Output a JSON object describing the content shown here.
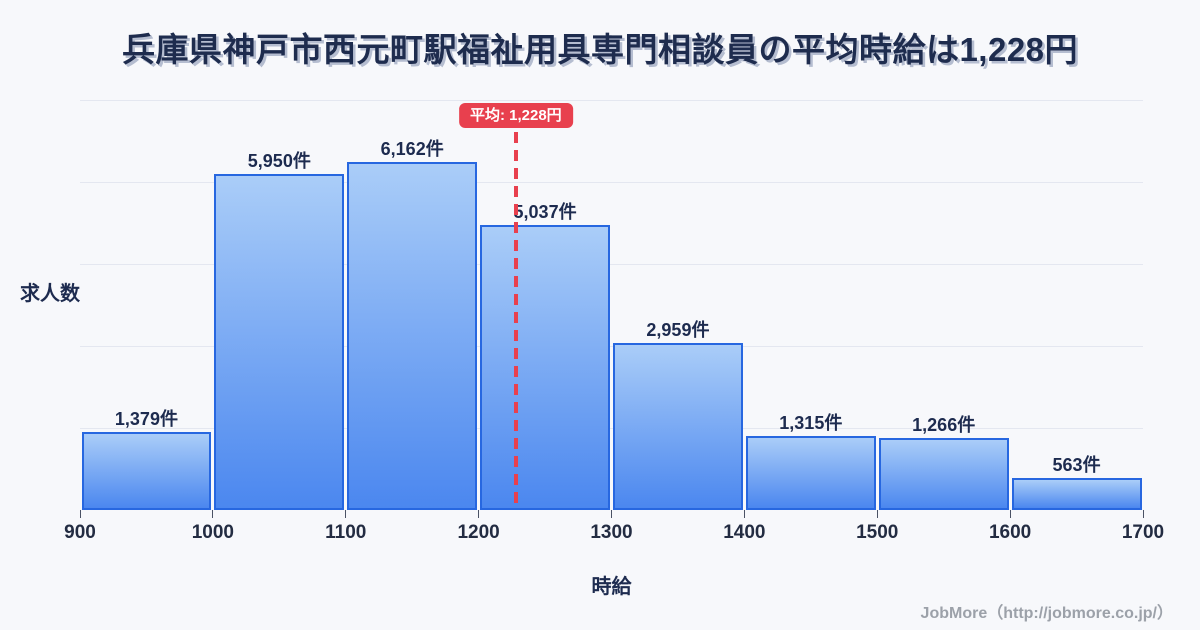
{
  "title": "兵庫県神戸市西元町駅福祉用具専門相談員の平均時給は1,228円",
  "chart_data": {
    "type": "bar",
    "subtype": "histogram",
    "title": "兵庫県神戸市西元町駅福祉用具専門相談員の平均時給は1,228円",
    "xlabel": "時給",
    "ylabel": "求人数",
    "bin_edges": [
      900,
      1000,
      1100,
      1200,
      1300,
      1400,
      1500,
      1600,
      1700
    ],
    "x_tick_labels": [
      "900",
      "1000",
      "1100",
      "1200",
      "1300",
      "1400",
      "1500",
      "1600",
      "1700"
    ],
    "values": [
      1379,
      5950,
      6162,
      5037,
      2959,
      1315,
      1266,
      563
    ],
    "bar_labels": [
      "1,379件",
      "5,950件",
      "6,162件",
      "5,037件",
      "2,959件",
      "1,315件",
      "1,266件",
      "563件"
    ],
    "ylim": [
      0,
      7250
    ],
    "grid": "horizontal",
    "gridline_count": 5,
    "legend": "none",
    "average": {
      "value": 1228,
      "label": "平均: 1,228円"
    }
  },
  "footer": {
    "credit": "JobMore（http://jobmore.co.jp/）"
  },
  "colors": {
    "background": "#f7f8fb",
    "title_text": "#1e2c4e",
    "bar_fill_top": "#aacdf8",
    "bar_fill_bottom": "#4b87ef",
    "bar_border": "#2767e0",
    "grid_line": "#e4e7f0",
    "average_red": "#e8404e",
    "badge_text": "#ffffff",
    "axis_text": "#232c42",
    "footer_text": "#9ca1a9"
  }
}
